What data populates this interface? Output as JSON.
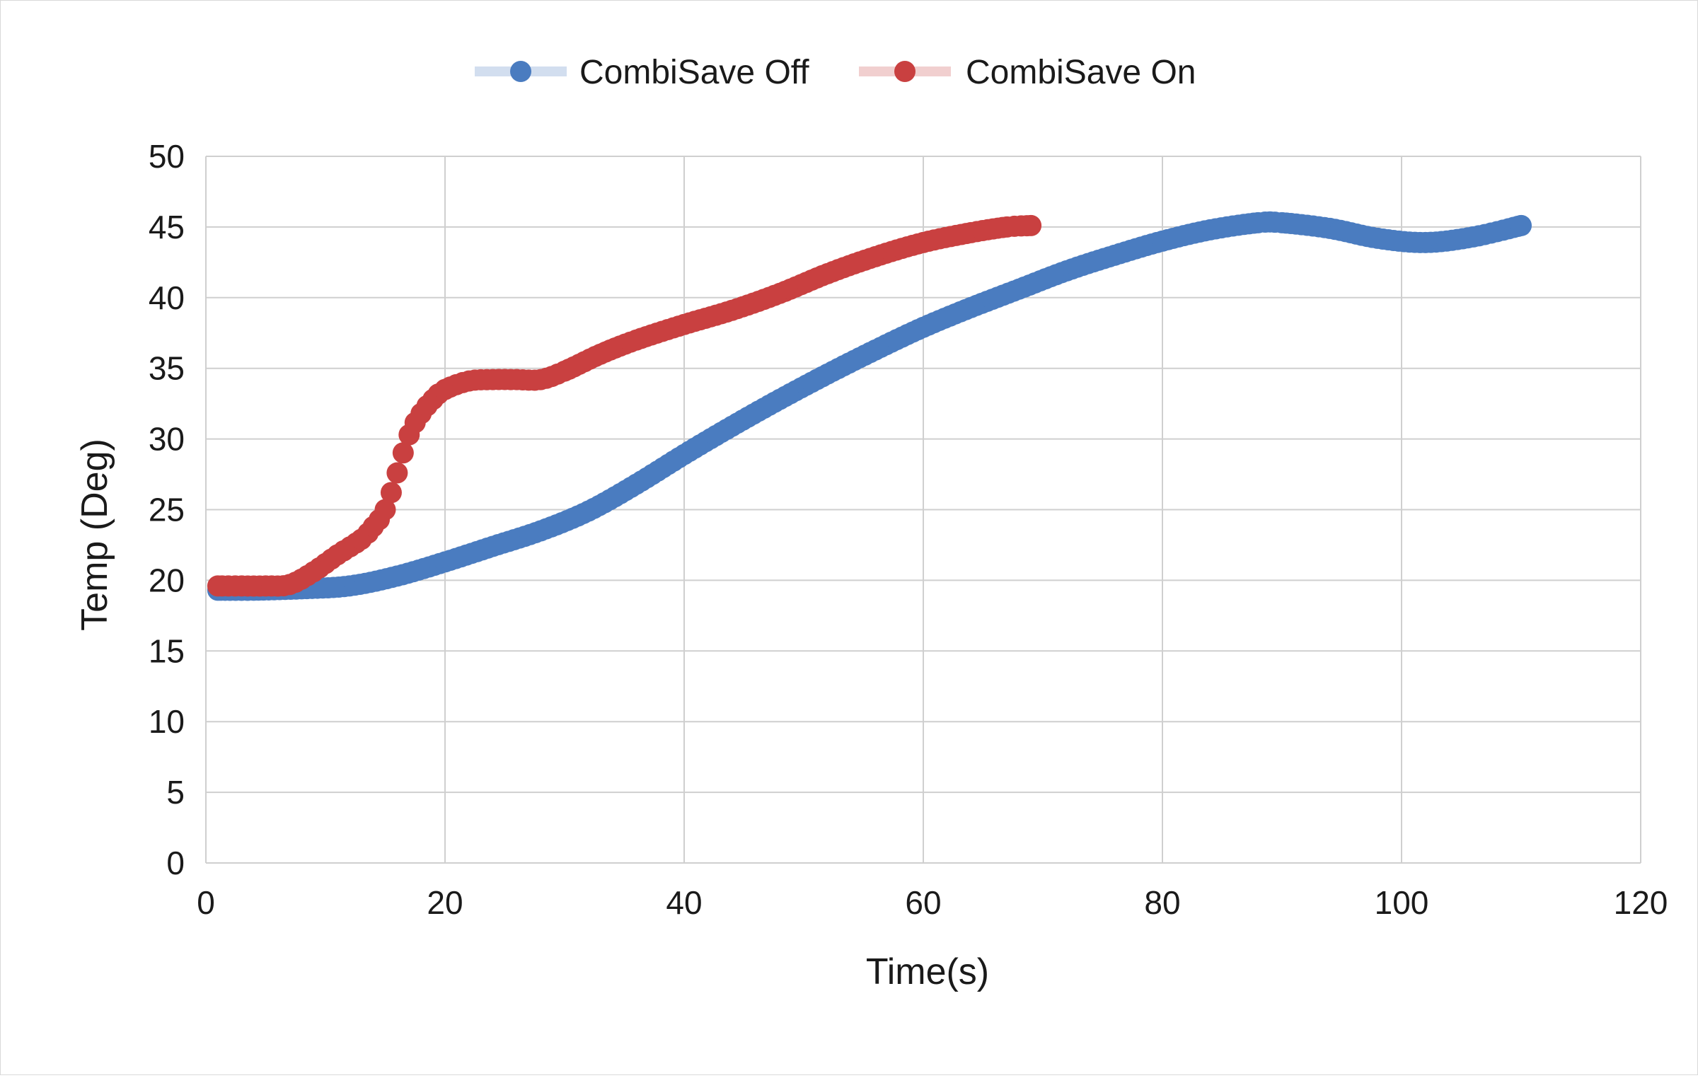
{
  "chart_data": {
    "type": "scatter",
    "title": "",
    "xlabel": "Time(s)",
    "ylabel": "Temp (Deg)",
    "xlim": [
      0,
      120
    ],
    "ylim": [
      0,
      50
    ],
    "xticks": [
      0,
      20,
      40,
      60,
      80,
      100,
      120
    ],
    "yticks": [
      0,
      5,
      10,
      15,
      20,
      25,
      30,
      35,
      40,
      45,
      50
    ],
    "grid": true,
    "legend_position": "top-center",
    "series": [
      {
        "name": "CombiSave Off",
        "color": "#4a7cc0",
        "marker": "circle",
        "x": [
          1,
          4,
          8,
          12,
          16,
          20,
          24,
          28,
          32,
          36,
          40,
          44,
          48,
          52,
          56,
          60,
          64,
          68,
          72,
          76,
          80,
          84,
          88,
          90,
          94,
          98,
          102,
          106,
          110
        ],
        "y": [
          19.3,
          19.3,
          19.4,
          19.6,
          20.3,
          21.3,
          22.4,
          23.5,
          24.9,
          26.8,
          28.9,
          30.9,
          32.8,
          34.6,
          36.3,
          37.9,
          39.3,
          40.6,
          41.9,
          43.0,
          44.0,
          44.8,
          45.3,
          45.3,
          44.9,
          44.2,
          43.9,
          44.3,
          45.1
        ]
      },
      {
        "name": "CombiSave On",
        "color": "#c94040",
        "marker": "circle",
        "x": [
          1,
          3,
          5,
          7,
          9,
          11,
          13,
          14,
          15,
          16,
          17,
          18,
          19,
          20,
          22,
          24,
          26,
          28,
          30,
          33,
          36,
          40,
          44,
          48,
          52,
          56,
          60,
          64,
          67,
          69
        ],
        "y": [
          19.6,
          19.6,
          19.6,
          19.7,
          20.6,
          21.8,
          22.9,
          23.8,
          25.0,
          27.6,
          30.3,
          31.8,
          32.8,
          33.5,
          34.1,
          34.2,
          34.2,
          34.2,
          34.8,
          36.0,
          37.0,
          38.1,
          39.1,
          40.3,
          41.7,
          42.9,
          43.9,
          44.6,
          45.0,
          45.1
        ]
      }
    ]
  }
}
